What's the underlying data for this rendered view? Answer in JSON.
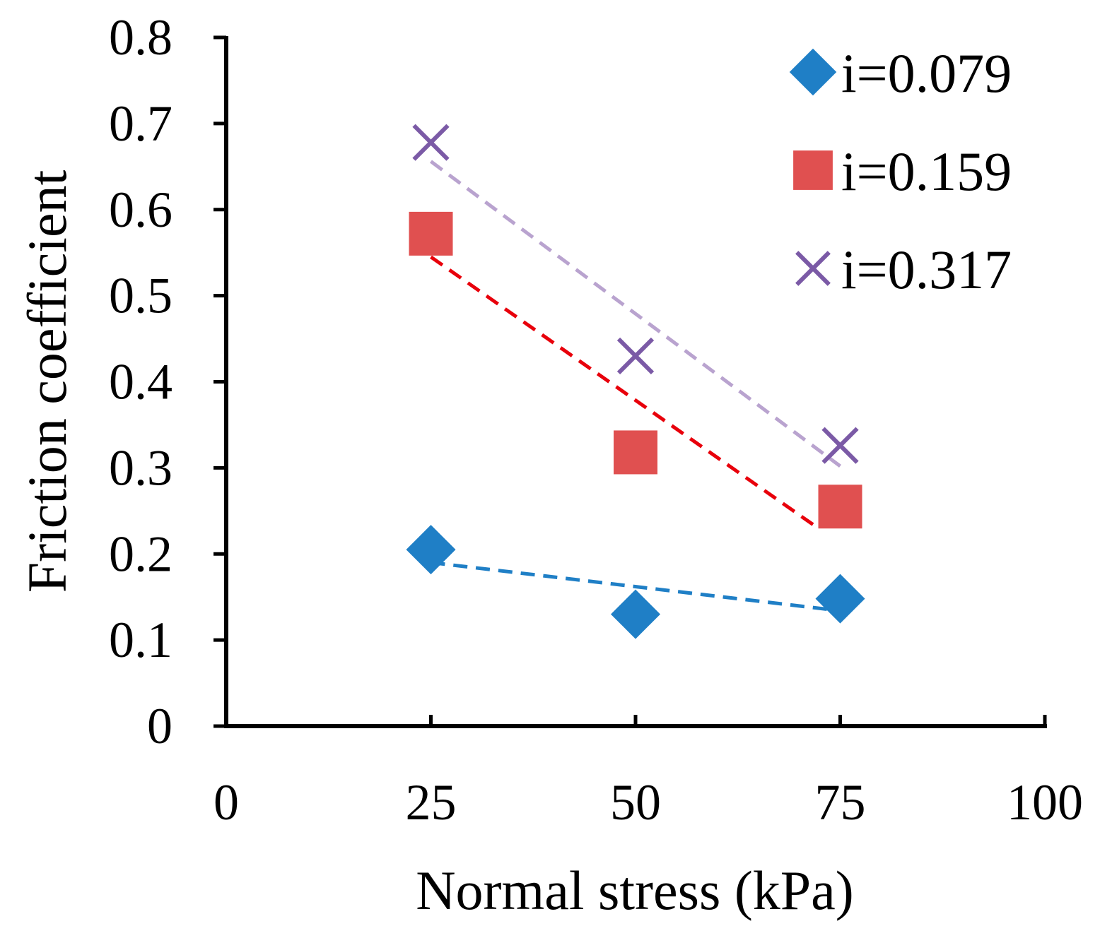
{
  "chart_data": {
    "type": "scatter",
    "title": "",
    "xlabel": "Normal stress (kPa)",
    "ylabel": "Friction coefficient",
    "xlim": [
      0,
      100
    ],
    "ylim": [
      0,
      0.8
    ],
    "xticks": [
      0,
      25,
      50,
      75,
      100
    ],
    "xtick_labels": [
      "0",
      "25",
      "50",
      "75",
      "100"
    ],
    "yticks": [
      0,
      0.1,
      0.2,
      0.3,
      0.4,
      0.5,
      0.6,
      0.7,
      0.8
    ],
    "ytick_labels": [
      "0",
      "0.1",
      "0.2",
      "0.3",
      "0.4",
      "0.5",
      "0.6",
      "0.7",
      "0.8"
    ],
    "grid": false,
    "legend_position": "top-right",
    "series": [
      {
        "name": "i=0.079",
        "marker": "diamond",
        "color": "#1f7fc6",
        "trend_color": "#1f7fc6",
        "x": [
          25,
          50,
          75
        ],
        "y": [
          0.205,
          0.13,
          0.148
        ],
        "trendline": {
          "x": [
            25,
            75
          ],
          "y": [
            0.19,
            0.134
          ]
        }
      },
      {
        "name": "i=0.159",
        "marker": "square",
        "color": "#e05050",
        "trend_color": "#e8000b",
        "x": [
          25,
          50,
          75
        ],
        "y": [
          0.572,
          0.318,
          0.255
        ],
        "trendline": {
          "x": [
            25,
            72
          ],
          "y": [
            0.545,
            0.232
          ]
        }
      },
      {
        "name": "i=0.317",
        "marker": "cross",
        "color": "#7b5aa6",
        "trend_color": "#b9a3cf",
        "x": [
          25,
          50,
          75
        ],
        "y": [
          0.678,
          0.43,
          0.326
        ],
        "trendline": {
          "x": [
            25,
            75
          ],
          "y": [
            0.656,
            0.302
          ]
        }
      }
    ]
  }
}
